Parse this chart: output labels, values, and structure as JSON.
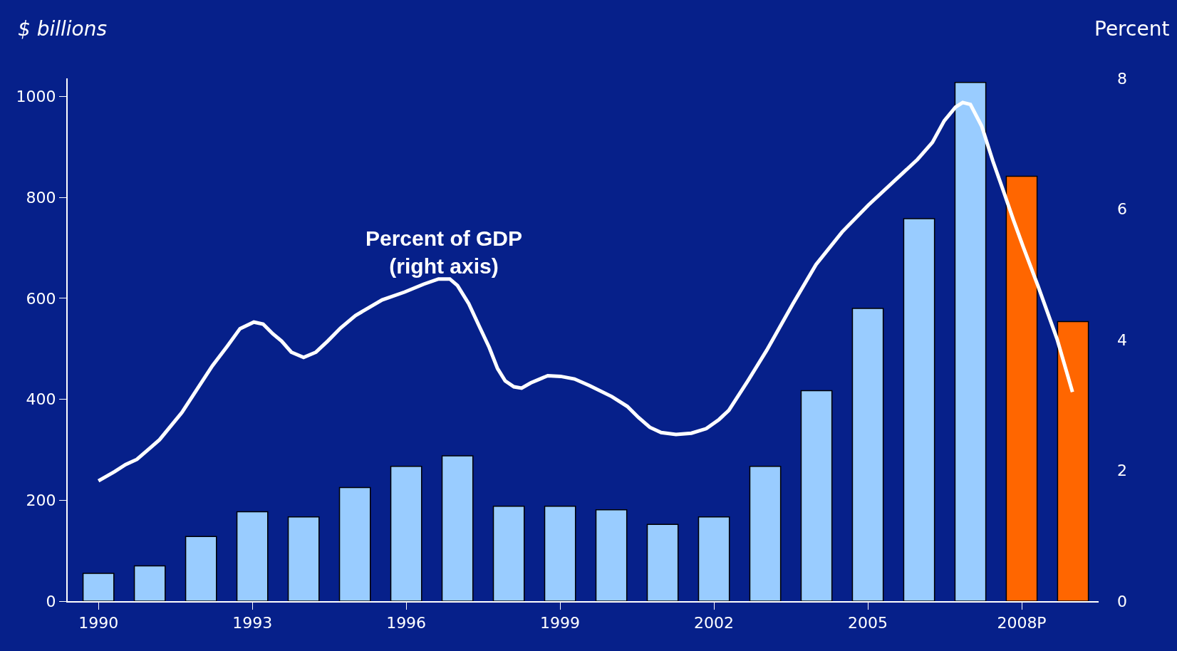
{
  "chart_data": {
    "type": "bar",
    "ylabel": "$ billions",
    "y2label": "Percent",
    "x": [
      1990,
      1991,
      1992,
      1993,
      1994,
      1995,
      1996,
      1997,
      1998,
      1999,
      2000,
      2001,
      2002,
      2003,
      2004,
      2005,
      2006,
      2007,
      2008,
      2009
    ],
    "xlim": [
      1989.4,
      2009.5
    ],
    "xticks": [
      1990,
      1993,
      1996,
      1999,
      2002,
      2005,
      {
        "value": 2008,
        "label": "2008P"
      }
    ],
    "ylim": [
      0,
      1036
    ],
    "yticks": [
      0,
      200,
      400,
      600,
      800,
      1000
    ],
    "y2lim": [
      0,
      8
    ],
    "y2ticks": [
      0,
      2,
      4,
      6,
      8
    ],
    "grid": false,
    "annotations": [
      "Percent of GDP\n(right axis)"
    ],
    "series": [
      {
        "values": [
          55,
          70,
          128,
          177,
          167,
          225,
          267,
          288,
          188,
          188,
          181,
          152,
          167,
          267,
          417,
          580,
          758,
          1028,
          842,
          554
        ],
        "colors": [
          "#99ccff",
          "#99ccff",
          "#99ccff",
          "#99ccff",
          "#99ccff",
          "#99ccff",
          "#99ccff",
          "#99ccff",
          "#99ccff",
          "#99ccff",
          "#99ccff",
          "#99ccff",
          "#99ccff",
          "#99ccff",
          "#99ccff",
          "#99ccff",
          "#99ccff",
          "#99ccff",
          "#ff6600",
          "#ff6600"
        ]
      },
      {
        "type": "line",
        "axis": "y2",
        "color": "#ffffff",
        "marker": "none",
        "line_style": "solid",
        "x": [
          1990.0,
          1990.31,
          1990.53,
          1990.75,
          1991.0,
          1991.19,
          1991.63,
          1992.22,
          1992.51,
          1992.76,
          1993.03,
          1993.21,
          1993.4,
          1993.57,
          1993.76,
          1994.0,
          1994.24,
          1994.47,
          1994.72,
          1995.01,
          1995.53,
          1995.97,
          1996.34,
          1996.63,
          1996.85,
          1997.0,
          1997.22,
          1997.44,
          1997.62,
          1997.78,
          1997.93,
          1998.1,
          1998.25,
          1998.43,
          1998.76,
          1999.01,
          1999.28,
          1999.57,
          2000.01,
          2000.31,
          2000.53,
          2000.75,
          2000.97,
          2001.26,
          2001.56,
          2001.85,
          2002.1,
          2002.29,
          2002.66,
          2003.03,
          2003.54,
          2003.99,
          2004.5,
          2005.01,
          2005.53,
          2005.97,
          2006.26,
          2006.49,
          2006.71,
          2006.85,
          2007.0,
          2007.22,
          2007.44,
          2007.66,
          2007.84,
          2008.03,
          2008.32,
          2008.69,
          2008.99
        ],
        "values": [
          1.84,
          1.98,
          2.09,
          2.17,
          2.34,
          2.47,
          2.89,
          3.6,
          3.9,
          4.17,
          4.27,
          4.24,
          4.09,
          3.98,
          3.81,
          3.73,
          3.81,
          3.98,
          4.18,
          4.37,
          4.61,
          4.73,
          4.85,
          4.93,
          4.93,
          4.83,
          4.55,
          4.18,
          3.88,
          3.56,
          3.37,
          3.28,
          3.26,
          3.34,
          3.45,
          3.44,
          3.4,
          3.3,
          3.13,
          2.98,
          2.81,
          2.66,
          2.58,
          2.55,
          2.57,
          2.64,
          2.78,
          2.92,
          3.37,
          3.84,
          4.55,
          5.15,
          5.65,
          6.06,
          6.44,
          6.76,
          7.02,
          7.35,
          7.56,
          7.63,
          7.6,
          7.27,
          6.73,
          6.24,
          5.83,
          5.42,
          4.82,
          4.01,
          3.2
        ]
      }
    ]
  }
}
